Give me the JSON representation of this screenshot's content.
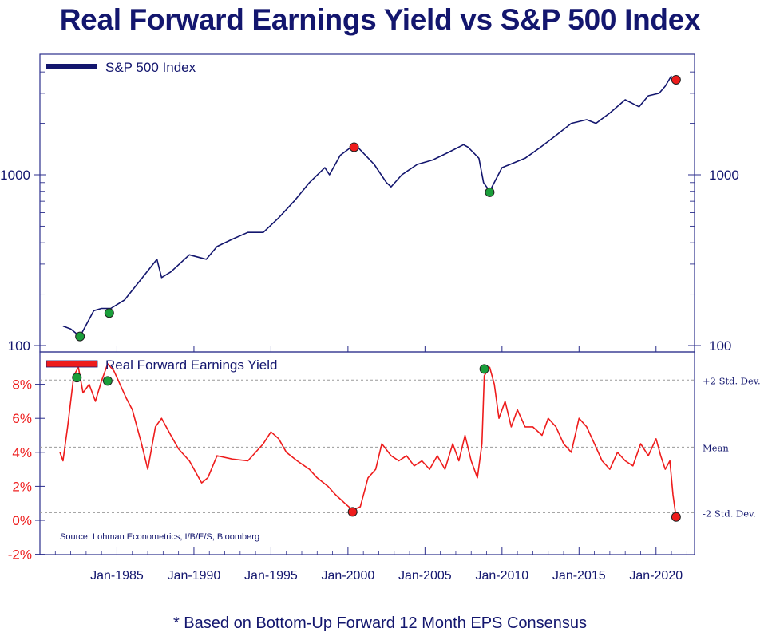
{
  "title": "Real Forward Earnings Yield vs S&P 500 Index",
  "footnote": "* Based on Bottom-Up Forward 12 Month EPS Consensus",
  "source": "Source: Lohman Econometrics, I/B/E/S, Bloomberg",
  "colors": {
    "navy": "#13166e",
    "red": "#ee1c1c",
    "green": "#1a9e3a",
    "frame": "#2b2e8c",
    "dashed": "#9a9a9a"
  },
  "chart_data": [
    {
      "type": "line",
      "scale": "log",
      "series": [
        {
          "name": "S&P 500 Index",
          "color": "#13166e"
        }
      ],
      "x": [
        "1981.5",
        "1982.0",
        "1982.6",
        "1983.5",
        "1984.0",
        "1984.6",
        "1985.5",
        "1986.5",
        "1987.6",
        "1987.9",
        "1988.5",
        "1989.7",
        "1990.8",
        "1991.5",
        "1992.5",
        "1993.5",
        "1994.5",
        "1995.5",
        "1996.5",
        "1997.5",
        "1998.5",
        "1998.8",
        "1999.5",
        "2000.2",
        "2000.7",
        "2001.7",
        "2002.5",
        "2002.8",
        "2003.5",
        "2004.5",
        "2005.5",
        "2006.5",
        "2007.5",
        "2007.8",
        "2008.5",
        "2008.8",
        "2009.2",
        "2010.0",
        "2011.5",
        "2012.5",
        "2013.5",
        "2014.5",
        "2015.5",
        "2016.1",
        "2017.0",
        "2018.0",
        "2018.9",
        "2019.5",
        "2020.2",
        "2020.6",
        "2021.0"
      ],
      "values": [
        130,
        125,
        113,
        160,
        165,
        165,
        185,
        240,
        320,
        250,
        270,
        340,
        320,
        380,
        420,
        460,
        460,
        560,
        700,
        900,
        1100,
        1000,
        1300,
        1450,
        1430,
        1150,
        900,
        850,
        1000,
        1150,
        1220,
        1350,
        1500,
        1450,
        1250,
        900,
        800,
        1100,
        1250,
        1450,
        1700,
        2000,
        2100,
        2000,
        2300,
        2750,
        2500,
        2900,
        3000,
        3300,
        3800
      ],
      "markers": [
        {
          "x": "1982.6",
          "value": 113,
          "color": "green"
        },
        {
          "x": "1984.5",
          "value": 155,
          "color": "green"
        },
        {
          "x": "2000.4",
          "value": 1450,
          "color": "red"
        },
        {
          "x": "2009.2",
          "value": 790,
          "color": "green"
        },
        {
          "x": "2021.3",
          "value": 3600,
          "color": "red"
        }
      ],
      "ylim": [
        100,
        4000
      ],
      "yticks_labeled": [
        100,
        1000
      ],
      "ytick_labels": [
        "100",
        "1000"
      ],
      "legend_label": "S&P 500 Index"
    },
    {
      "type": "line",
      "series": [
        {
          "name": "Real Forward Earnings Yield",
          "color": "#ee1c1c"
        }
      ],
      "x": [
        "1981.3",
        "1981.5",
        "1981.8",
        "1982.2",
        "1982.5",
        "1982.8",
        "1983.2",
        "1983.6",
        "1984.0",
        "1984.4",
        "1984.8",
        "1985.2",
        "1985.6",
        "1986.0",
        "1986.6",
        "1987.0",
        "1987.5",
        "1987.9",
        "1988.5",
        "1989.0",
        "1989.7",
        "1990.5",
        "1990.9",
        "1991.5",
        "1992.5",
        "1993.5",
        "1994.5",
        "1995.0",
        "1995.5",
        "1996.0",
        "1996.7",
        "1997.5",
        "1998.0",
        "1998.7",
        "1999.2",
        "1999.8",
        "2000.3",
        "2000.8",
        "2001.3",
        "2001.8",
        "2002.2",
        "2002.8",
        "2003.3",
        "2003.8",
        "2004.3",
        "2004.8",
        "2005.3",
        "2005.8",
        "2006.3",
        "2006.8",
        "2007.2",
        "2007.6",
        "2008.0",
        "2008.4",
        "2008.7",
        "2008.85",
        "2009.2",
        "2009.5",
        "2009.8",
        "2010.2",
        "2010.6",
        "2011.0",
        "2011.5",
        "2012.0",
        "2012.6",
        "2013.0",
        "2013.5",
        "2014.0",
        "2014.5",
        "2015.0",
        "2015.5",
        "2016.0",
        "2016.5",
        "2017.0",
        "2017.5",
        "2018.0",
        "2018.5",
        "2019.0",
        "2019.5",
        "2020.0",
        "2020.3",
        "2020.6",
        "2020.9",
        "2021.1",
        "2021.3"
      ],
      "values": [
        4.0,
        3.5,
        5.5,
        8.5,
        9.0,
        7.5,
        8.0,
        7.0,
        8.2,
        9.2,
        8.8,
        8.0,
        7.2,
        6.5,
        4.5,
        3.0,
        5.5,
        6.0,
        5.0,
        4.2,
        3.5,
        2.2,
        2.5,
        3.8,
        3.6,
        3.5,
        4.5,
        5.2,
        4.8,
        4.0,
        3.5,
        3.0,
        2.5,
        2.0,
        1.5,
        1.0,
        0.6,
        0.8,
        2.5,
        3.0,
        4.5,
        3.8,
        3.5,
        3.8,
        3.2,
        3.5,
        3.0,
        3.8,
        3.0,
        4.5,
        3.5,
        5.0,
        3.5,
        2.5,
        4.5,
        8.5,
        9.0,
        8.0,
        6.0,
        7.0,
        5.5,
        6.5,
        5.5,
        5.5,
        5.0,
        6.0,
        5.5,
        4.5,
        4.0,
        6.0,
        5.5,
        4.5,
        3.5,
        3.0,
        4.0,
        3.5,
        3.2,
        4.5,
        3.8,
        4.8,
        3.8,
        3.0,
        3.5,
        1.5,
        0.2
      ],
      "markers": [
        {
          "x": "1982.4",
          "value": 8.4,
          "color": "green"
        },
        {
          "x": "1984.4",
          "value": 8.2,
          "color": "green"
        },
        {
          "x": "2000.3",
          "value": 0.5,
          "color": "red"
        },
        {
          "x": "2008.85",
          "value": 8.9,
          "color": "green"
        },
        {
          "x": "2021.3",
          "value": 0.2,
          "color": "red"
        }
      ],
      "ylim": [
        -2,
        9.4
      ],
      "yticks": [
        -2,
        0,
        2,
        4,
        6,
        8
      ],
      "ytick_labels": [
        "-2%",
        "0%",
        "2%",
        "4%",
        "6%",
        "8%"
      ],
      "reference_lines": [
        {
          "value": 8.25,
          "label": "+2 Std. Dev."
        },
        {
          "value": 4.3,
          "label": "Mean"
        },
        {
          "value": 0.45,
          "label": "-2 Std. Dev."
        }
      ],
      "legend_label": "Real Forward Earnings Yield"
    }
  ],
  "xaxis": {
    "xlim": [
      1980.0,
      2022.5
    ],
    "ticks": [
      1985,
      1990,
      1995,
      2000,
      2005,
      2010,
      2015,
      2020
    ],
    "tick_labels": [
      "Jan-1985",
      "Jan-1990",
      "Jan-1995",
      "Jan-2000",
      "Jan-2005",
      "Jan-2010",
      "Jan-2015",
      "Jan-2020"
    ]
  }
}
